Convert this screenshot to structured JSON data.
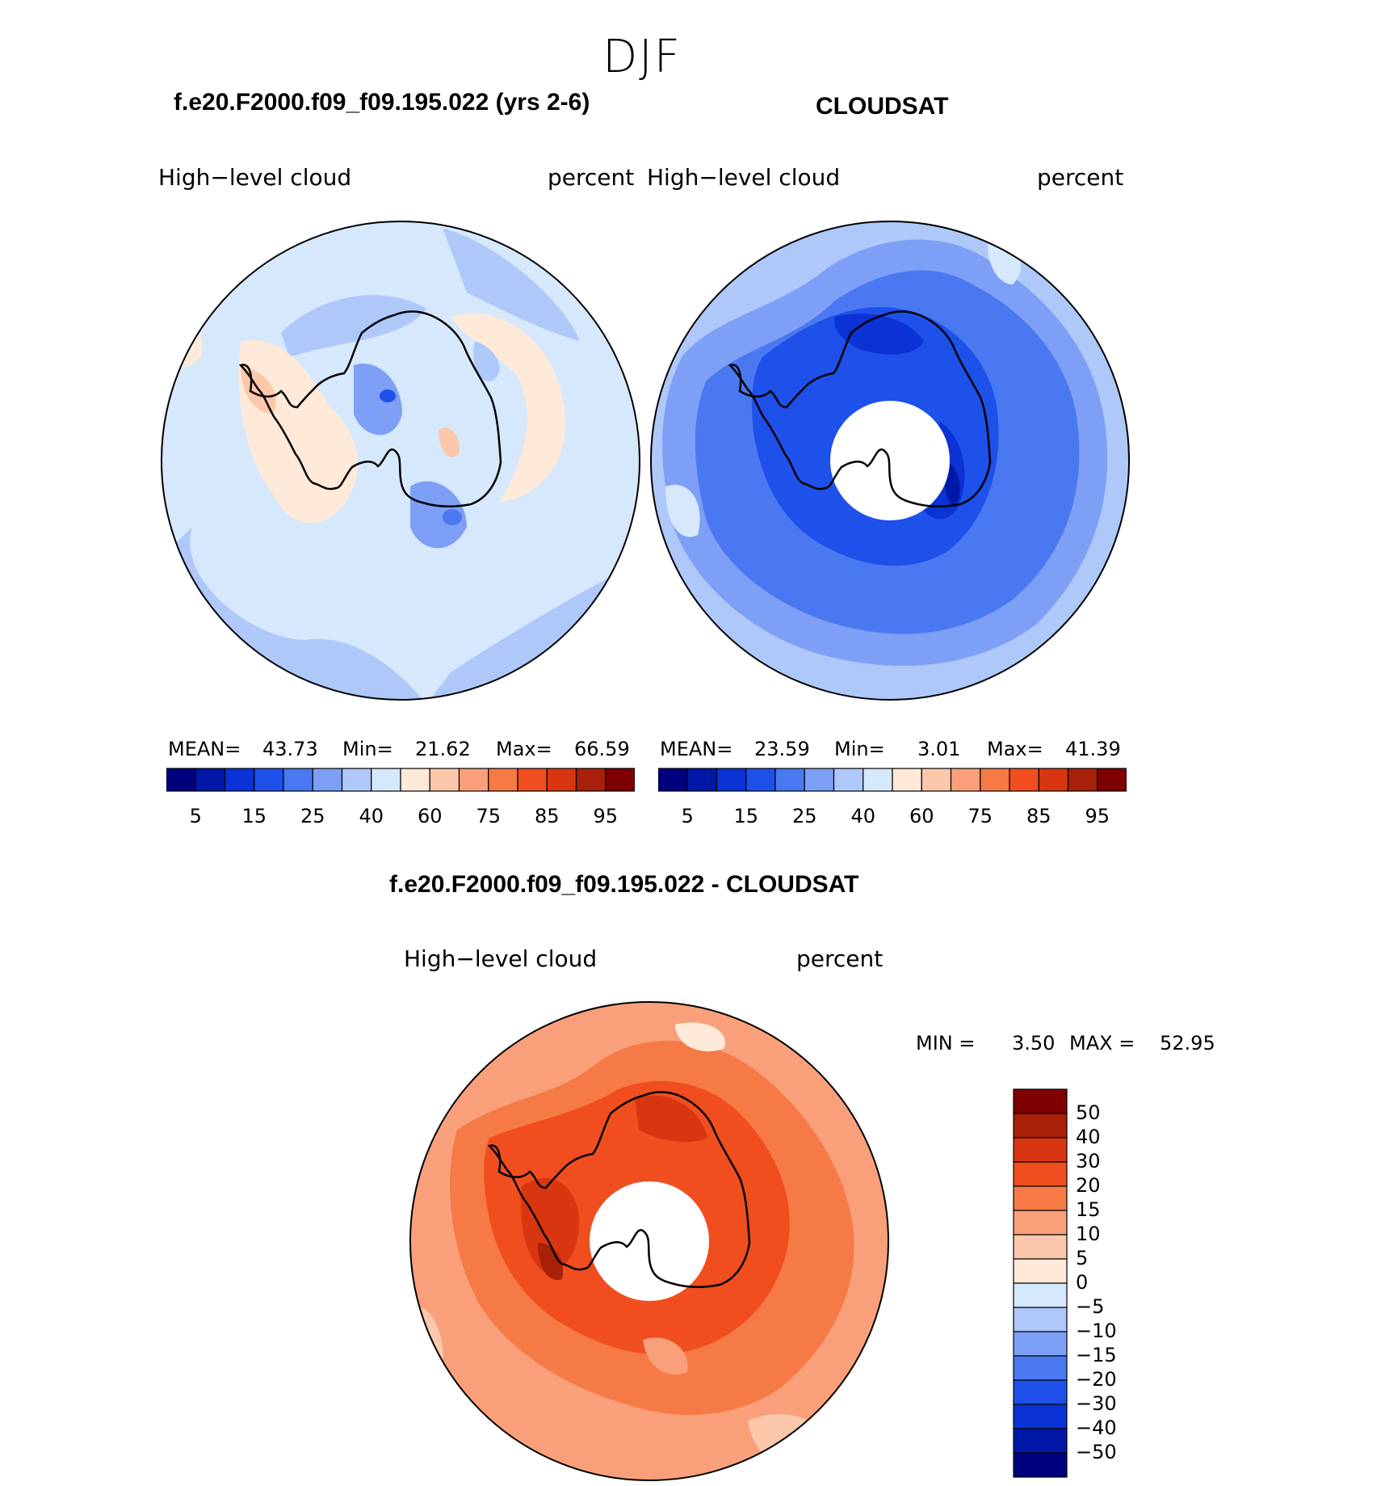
{
  "season": "DJF",
  "panels": [
    {
      "id": "model",
      "title": "f.e20.F2000.f09_f09.195.022 (yrs 2-6)",
      "left_label": "High−level  cloud",
      "right_label": "percent",
      "stats": {
        "mean_label": "MEAN=",
        "mean": "43.73",
        "min_label": "Min=",
        "min": "21.62",
        "max_label": "Max=",
        "max": "66.59"
      }
    },
    {
      "id": "obs",
      "title": "CLOUDSAT",
      "left_label": "High−level  cloud",
      "right_label": "percent",
      "stats": {
        "mean_label": "MEAN=",
        "mean": "23.59",
        "min_label": "Min=",
        "min": "3.01",
        "max_label": "Max=",
        "max": "41.39"
      }
    },
    {
      "id": "diff",
      "title": "f.e20.F2000.f09_f09.195.022 - CLOUDSAT",
      "left_label": "High−level  cloud",
      "right_label": "percent",
      "stats": {
        "min_label": "MIN =",
        "min": "3.50",
        "max_label": "MAX =",
        "max": "52.95"
      }
    }
  ],
  "colors": [
    "#00007f",
    "#0018a8",
    "#0a32d4",
    "#1e50ea",
    "#4a78f0",
    "#7d9ff5",
    "#aec8fa",
    "#d6e9fc",
    "#ffe9d8",
    "#fcc8ab",
    "#f9a07a",
    "#f57a45",
    "#f04e1f",
    "#d83610",
    "#a82008",
    "#7f0000"
  ],
  "chart_data": [
    {
      "type": "heatmap",
      "projection": "south polar stereographic",
      "title": "f.e20.F2000.f09_f09.195.022 (yrs 2-6)",
      "variable": "High-level cloud",
      "units": "percent",
      "mean": 43.73,
      "min": 21.62,
      "max": 66.59,
      "colorbar_ticks": [
        "5",
        "15",
        "25",
        "40",
        "60",
        "75",
        "85",
        "95"
      ]
    },
    {
      "type": "heatmap",
      "projection": "south polar stereographic",
      "title": "CLOUDSAT",
      "variable": "High-level cloud",
      "units": "percent",
      "mean": 23.59,
      "min": 3.01,
      "max": 41.39,
      "colorbar_ticks": [
        "5",
        "15",
        "25",
        "40",
        "60",
        "75",
        "85",
        "95"
      ]
    },
    {
      "type": "heatmap",
      "projection": "south polar stereographic",
      "title": "f.e20.F2000.f09_f09.195.022 - CLOUDSAT",
      "variable": "High-level cloud",
      "units": "percent",
      "min": 3.5,
      "max": 52.95,
      "colorbar_ticks": [
        "50",
        "40",
        "30",
        "20",
        "15",
        "10",
        "5",
        "0",
        "−5",
        "−10",
        "−15",
        "−20",
        "−30",
        "−40",
        "−50"
      ]
    }
  ]
}
